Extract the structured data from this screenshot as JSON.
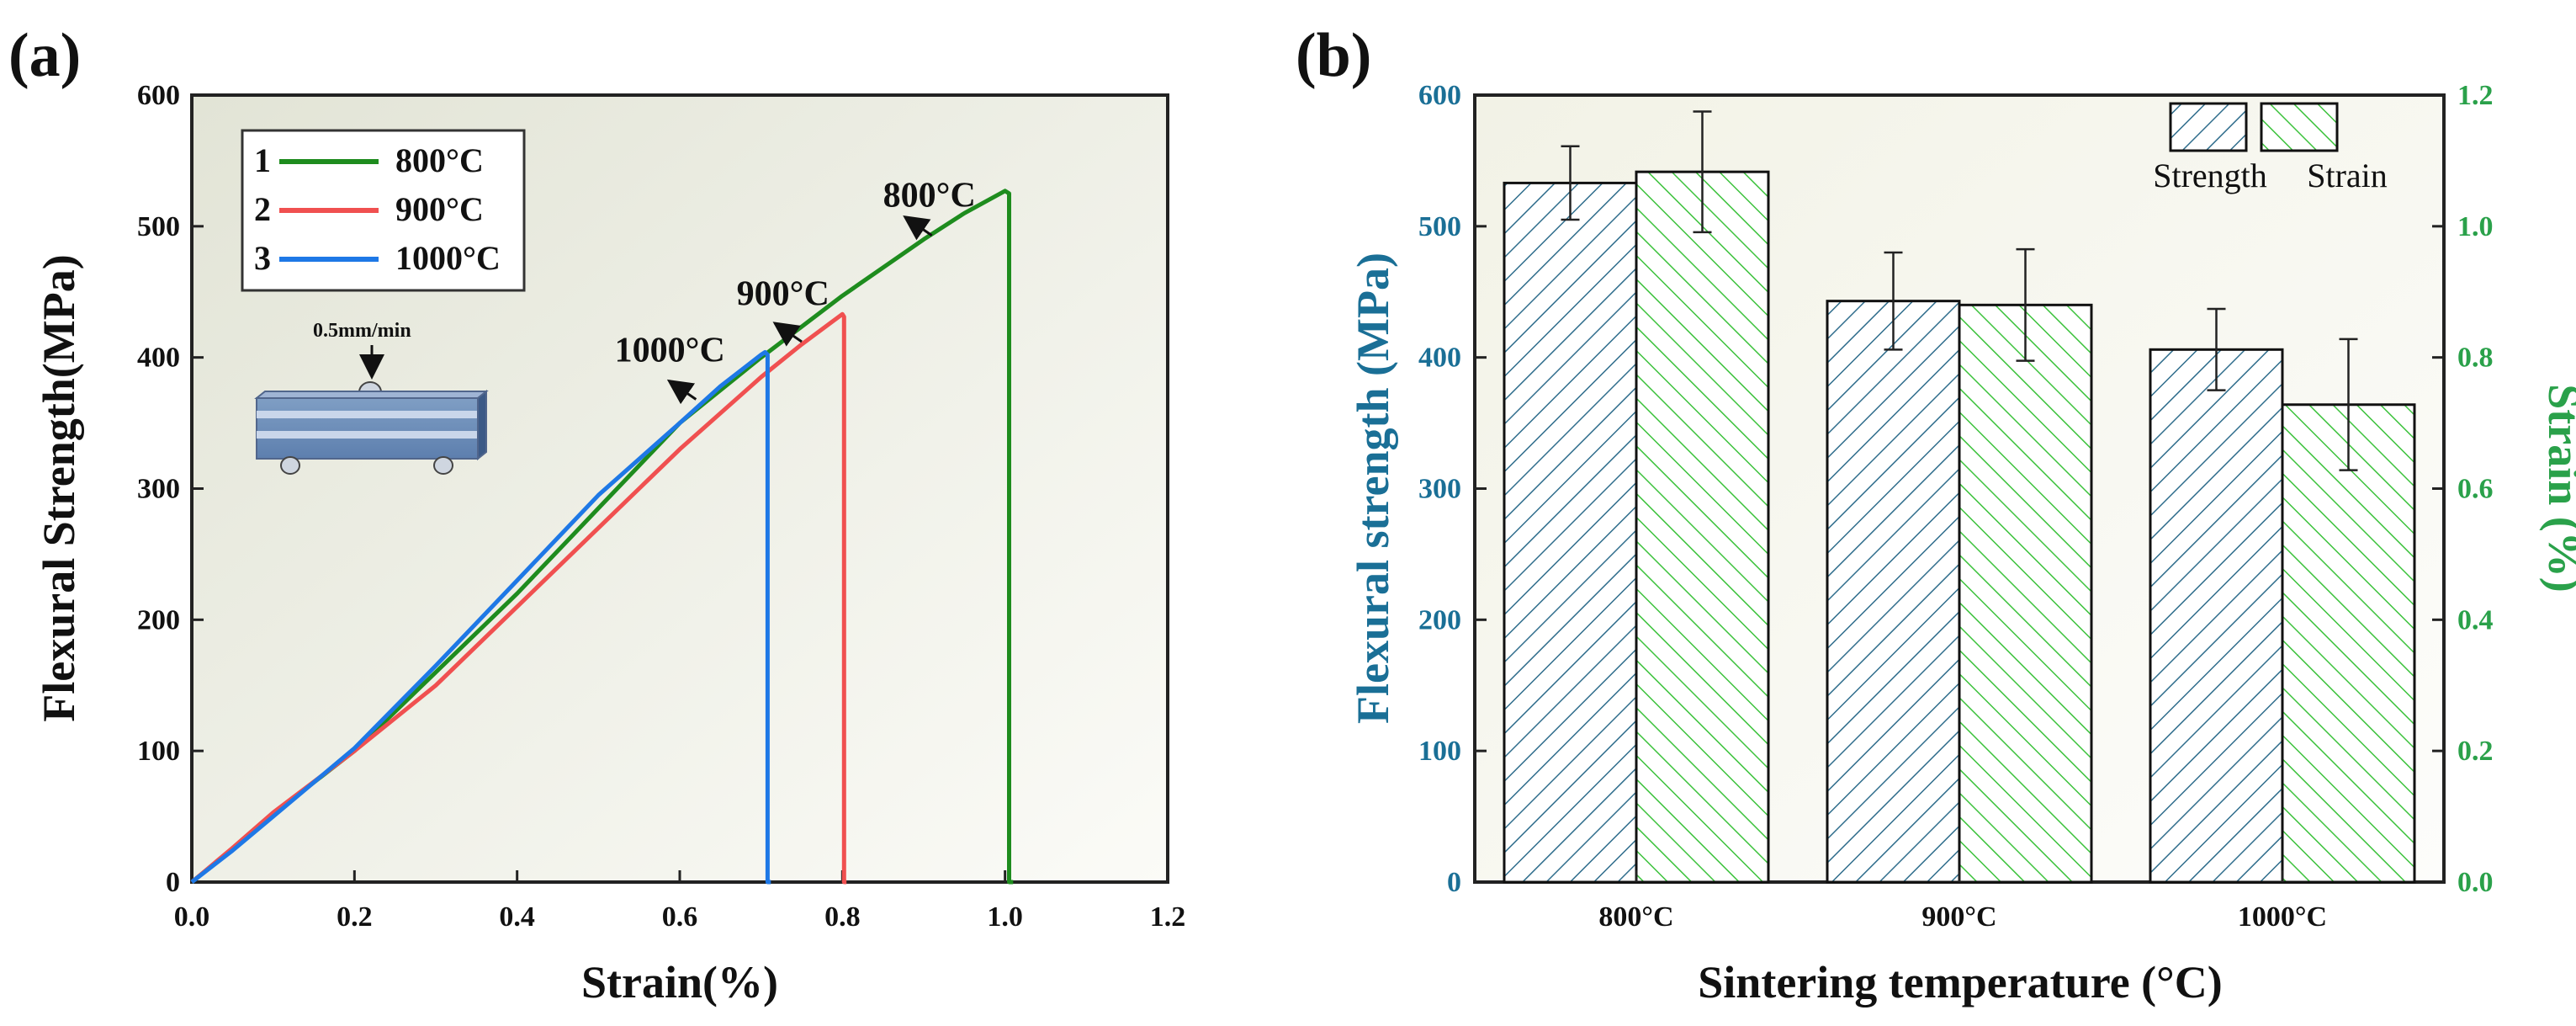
{
  "chart_data": [
    {
      "type": "line",
      "panel_label": "(a)",
      "xlabel": "Strain(%)",
      "ylabel": "Flexural Strength(MPa)",
      "xlim": [
        0,
        1.2
      ],
      "ylim": [
        0,
        600
      ],
      "xticks": [
        "0.0",
        "0.2",
        "0.4",
        "0.6",
        "0.8",
        "1.0",
        "1.2"
      ],
      "yticks": [
        "0",
        "100",
        "200",
        "300",
        "400",
        "500",
        "600"
      ],
      "legend": [
        {
          "num": "1",
          "label": "800°C",
          "color": "#1e8c1e"
        },
        {
          "num": "2",
          "label": "900°C",
          "color": "#f05050"
        },
        {
          "num": "3",
          "label": "1000°C",
          "color": "#1e78e6"
        }
      ],
      "series": [
        {
          "name": "800°C",
          "color": "#1e8c1e",
          "x": [
            0,
            0.05,
            0.1,
            0.2,
            0.3,
            0.4,
            0.5,
            0.6,
            0.7,
            0.8,
            0.9,
            0.95,
            1.0,
            1.005,
            1.005,
            1.01
          ],
          "y": [
            0,
            25,
            52,
            100,
            160,
            220,
            285,
            350,
            400,
            447,
            490,
            510,
            527,
            525,
            0,
            0
          ]
        },
        {
          "name": "900°C",
          "color": "#f05050",
          "x": [
            0,
            0.05,
            0.1,
            0.2,
            0.3,
            0.4,
            0.5,
            0.6,
            0.7,
            0.75,
            0.8,
            0.802,
            0.802,
            0.805
          ],
          "y": [
            0,
            26,
            53,
            100,
            150,
            210,
            270,
            330,
            385,
            410,
            433,
            431,
            0,
            0
          ]
        },
        {
          "name": "1000°C",
          "color": "#1e78e6",
          "x": [
            0,
            0.05,
            0.1,
            0.2,
            0.3,
            0.4,
            0.5,
            0.6,
            0.65,
            0.7,
            0.705,
            0.708,
            0.708,
            0.712
          ],
          "y": [
            0,
            24,
            50,
            102,
            165,
            230,
            295,
            350,
            378,
            402,
            404,
            402,
            0,
            0
          ]
        }
      ],
      "annotations": [
        {
          "text": "800°C",
          "x": 0.85,
          "y": 515,
          "arrow_to": [
            0.91,
            493
          ]
        },
        {
          "text": "900°C",
          "x": 0.67,
          "y": 440,
          "arrow_to": [
            0.75,
            412
          ]
        },
        {
          "text": "1000°C",
          "x": 0.52,
          "y": 397,
          "arrow_to": [
            0.62,
            368
          ]
        }
      ],
      "inset": {
        "label": "0.5mm/min"
      }
    },
    {
      "type": "bar",
      "panel_label": "(b)",
      "xlabel": "Sintering  temperature (°C)",
      "ylabel": "Flexural strength (MPa)",
      "y2label": "Strain (%)",
      "categories": [
        "800°C",
        "900°C",
        "1000°C"
      ],
      "ylim": [
        0,
        600
      ],
      "y2lim": [
        0,
        1.2
      ],
      "yticks": [
        "0",
        "100",
        "200",
        "300",
        "400",
        "500",
        "600"
      ],
      "y2ticks": [
        "0.0",
        "0.2",
        "0.4",
        "0.6",
        "0.8",
        "1.0",
        "1.2"
      ],
      "legend": [
        "Strength",
        "Strain"
      ],
      "series": [
        {
          "name": "Strength",
          "axis": "left",
          "color": "#2f6d8c",
          "values": [
            533,
            443,
            406
          ],
          "errors": [
            28,
            37,
            31
          ]
        },
        {
          "name": "Strain",
          "axis": "right",
          "color": "#3cc23c",
          "values": [
            1.083,
            0.88,
            0.728
          ],
          "errors": [
            0.092,
            0.085,
            0.1
          ]
        }
      ]
    }
  ]
}
